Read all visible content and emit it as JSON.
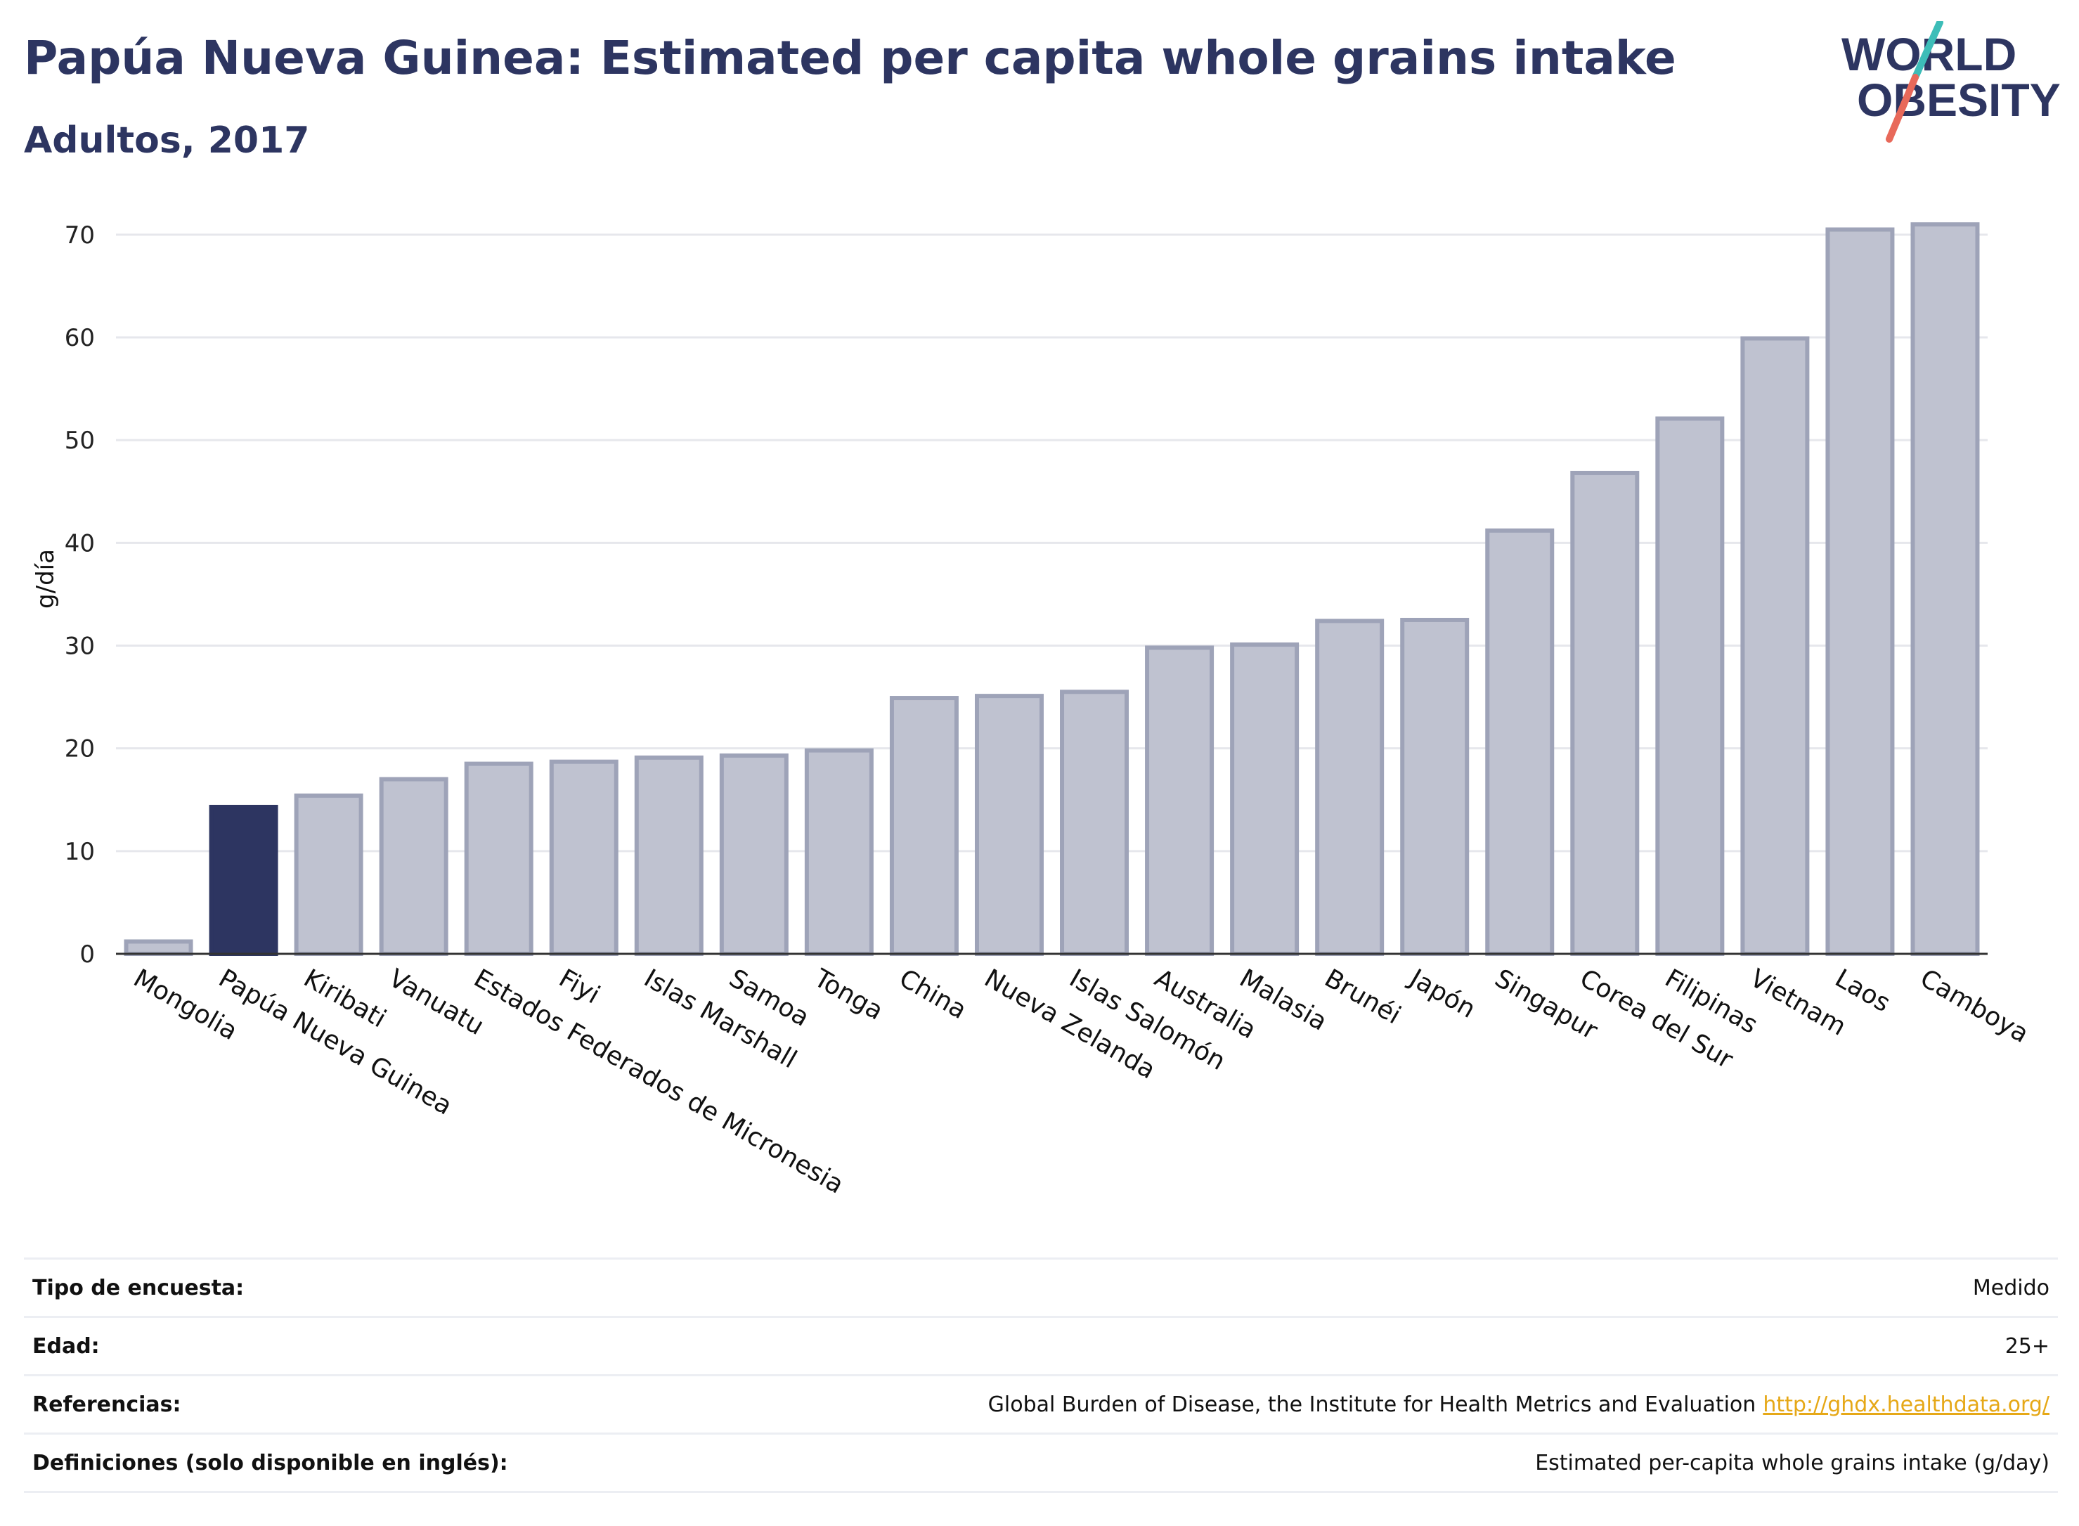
{
  "header": {
    "title": "Papúa Nueva Guinea: Estimated per capita whole grains intake",
    "subtitle": "Adultos, 2017"
  },
  "logo": {
    "line1": "WORLD",
    "line2": "OBESITY",
    "colors": {
      "text": "#2d3561",
      "slash_top": "#3dbdb8",
      "slash_bottom": "#e8695a"
    }
  },
  "chart_data": {
    "type": "bar",
    "ylabel": "g/día",
    "xlabel": "",
    "ylim": [
      0,
      73
    ],
    "yticks": [
      0,
      10,
      20,
      30,
      40,
      50,
      60,
      70
    ],
    "grid": true,
    "categories": [
      "Mongolia",
      "Papúa Nueva Guinea",
      "Kiribati",
      "Vanuatu",
      "Estados Federados de Micronesia",
      "Fiyi",
      "Islas Marshall",
      "Samoa",
      "Tonga",
      "China",
      "Nueva Zelanda",
      "Islas Salomón",
      "Australia",
      "Malasia",
      "Brunéi",
      "Japón",
      "Singapur",
      "Corea del Sur",
      "Filipinas",
      "Vietnam",
      "Laos",
      "Camboya"
    ],
    "values": [
      1.2,
      14.3,
      15.4,
      17.0,
      18.5,
      18.7,
      19.1,
      19.3,
      19.8,
      24.9,
      25.1,
      25.5,
      29.8,
      30.1,
      32.4,
      32.5,
      41.2,
      46.8,
      52.1,
      59.9,
      70.5,
      71.0
    ],
    "highlight": "Papúa Nueva Guinea",
    "colors": {
      "highlight": "#2d3561",
      "bar": "#bfc2d0",
      "bar_edge": "#9ea3b8",
      "grid": "#e6e7ec",
      "axis": "#333333"
    }
  },
  "meta": {
    "survey_label": "Tipo de encuesta:",
    "survey_value": "Medido",
    "age_label": "Edad:",
    "age_value": "25+",
    "refs_label": "Referencias:",
    "refs_value": "Global Burden of Disease, the Institute for Health Metrics and Evaluation",
    "refs_link": "http://ghdx.healthdata.org/",
    "defs_label": "Definiciones (solo disponible en inglés):",
    "defs_value": "Estimated per-capita whole grains intake (g/day)"
  }
}
